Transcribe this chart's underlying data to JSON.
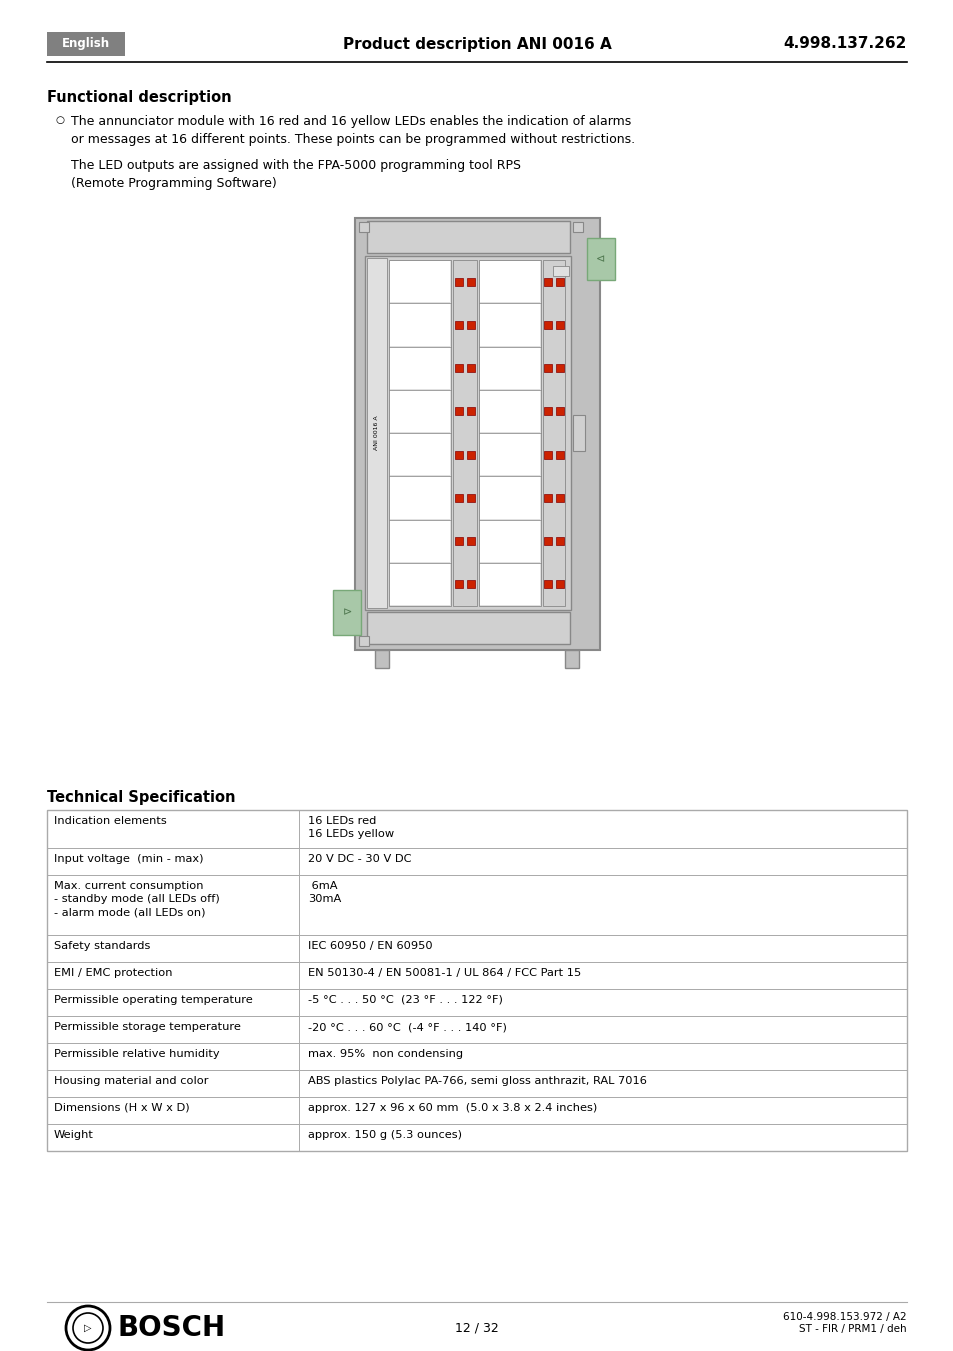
{
  "header_bg": "#808080",
  "header_text_color": "#ffffff",
  "header_left": "English",
  "header_center": "Product description ANI 0016 A",
  "header_right": "4.998.137.262",
  "section1_title": "Functional description",
  "bullet_text1": "The annunciator module with 16 red and 16 yellow LEDs enables the indication of alarms\nor messages at 16 different points. These points can be programmed without restrictions.",
  "paragraph_text": "The LED outputs are assigned with the FPA-5000 programming tool RPS\n(Remote Programming Software)",
  "section2_title": "Technical Specification",
  "table_rows": [
    [
      "Indication elements",
      "16 LEDs red\n16 LEDs yellow"
    ],
    [
      "Input voltage  (min - max)",
      "20 V DC - 30 V DC"
    ],
    [
      "Max. current consumption\n- standby mode (all LEDs off)\n- alarm mode (all LEDs on)",
      " 6mA\n30mA"
    ],
    [
      "Safety standards",
      "IEC 60950 / EN 60950"
    ],
    [
      "EMI / EMC protection",
      "EN 50130-4 / EN 50081-1 / UL 864 / FCC Part 15"
    ],
    [
      "Permissible operating temperature",
      "-5 °C . . . 50 °C  (23 °F . . . 122 °F)"
    ],
    [
      "Permissible storage temperature",
      "-20 °C . . . 60 °C  (-4 °F . . . 140 °F)"
    ],
    [
      "Permissible relative humidity",
      "max. 95%  non condensing"
    ],
    [
      "Housing material and color",
      "ABS plastics Polylac PA-766, semi gloss anthrazit, RAL 7016"
    ],
    [
      "Dimensions (H x W x D)",
      "approx. 127 x 96 x 60 mm  (5.0 x 3.8 x 2.4 inches)"
    ],
    [
      "Weight",
      "approx. 150 g (5.3 ounces)"
    ]
  ],
  "footer_center": "12 / 32",
  "footer_right_line1": "610-4.998.153.972 / A2",
  "footer_right_line2": "ST - FIR / PRM1 / deh",
  "page_bg": "#ffffff",
  "text_color": "#000000",
  "table_border_color": "#aaaaaa",
  "led_red_color": "#cc2200",
  "device_body_color": "#c0c0c0",
  "device_mid_color": "#d0d0d0",
  "device_light_color": "#e0e0e0",
  "device_green_color": "#a8c8a8",
  "device_green_dark": "#78a878"
}
